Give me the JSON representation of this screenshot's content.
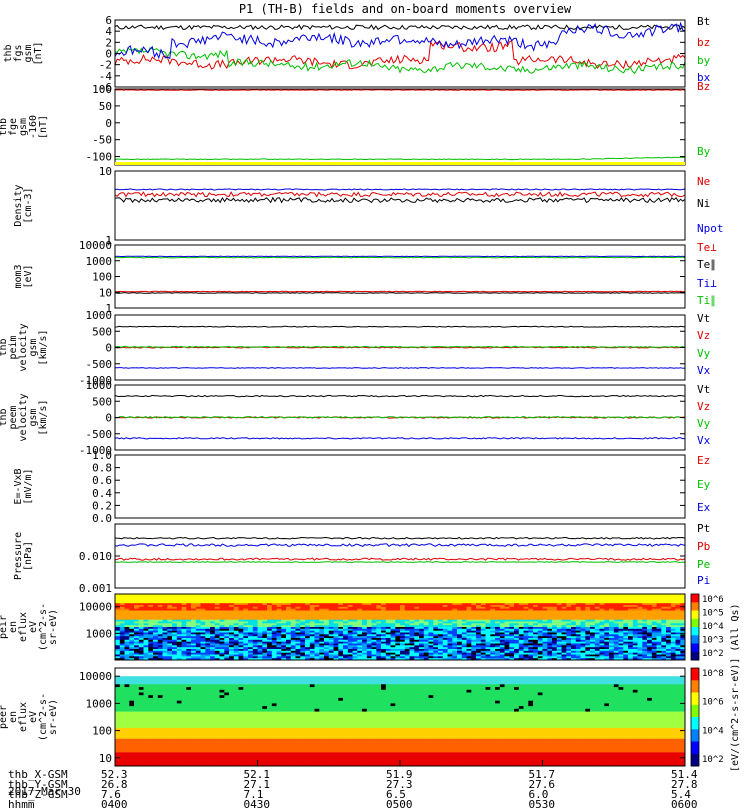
{
  "title": "P1  (TH-B) fields and on-board moments overview",
  "date_label": "2017 Mar 30",
  "colors": {
    "black": "#000000",
    "red": "#e00000",
    "green": "#00c000",
    "blue": "#0000e0",
    "yellow": "#ffff00"
  },
  "x_axis": {
    "rows": [
      {
        "label": "thb_X-GSM",
        "values": [
          "52.3",
          "52.1",
          "51.9",
          "51.7",
          "51.4"
        ]
      },
      {
        "label": "thb_Y-GSM",
        "values": [
          "26.8",
          "27.1",
          "27.3",
          "27.6",
          "27.8"
        ]
      },
      {
        "label": "thb_Z-GSM",
        "values": [
          "7.6",
          "7.1",
          "6.5",
          "6.0",
          "5.4"
        ]
      },
      {
        "label": "hhmm",
        "values": [
          "0400",
          "0430",
          "0500",
          "0530",
          "0600"
        ]
      }
    ]
  },
  "chart_data": [
    {
      "type": "line",
      "ylabel": [
        "thb",
        "fgs",
        "gsm",
        "[nT]"
      ],
      "ylim": [
        -6,
        6
      ],
      "ticks": [
        "-6",
        "-4",
        "-2",
        "0",
        "2",
        "4",
        "6"
      ],
      "tick_values": [
        -6,
        -4,
        -2,
        0,
        2,
        4,
        6
      ],
      "series": [
        {
          "name": "Bt",
          "color": "black",
          "base": 4.7,
          "noise": 0.4,
          "shape": "flat"
        },
        {
          "name": "bz",
          "color": "red",
          "base": -1.5,
          "noise": 0.8,
          "shape": "bz"
        },
        {
          "name": "by",
          "color": "green",
          "base": -2.5,
          "noise": 0.7,
          "shape": "by"
        },
        {
          "name": "bx",
          "color": "blue",
          "base": 2.5,
          "noise": 0.9,
          "shape": "bx"
        }
      ]
    },
    {
      "type": "line",
      "ylabel": [
        "thb",
        "fge",
        "gsm",
        "-160",
        "[nT]"
      ],
      "ylim": [
        -125,
        100
      ],
      "ticks": [
        "100",
        "50",
        "0",
        "-50",
        "-100"
      ],
      "tick_values": [
        100,
        50,
        0,
        -50,
        -100
      ],
      "series": [
        {
          "name": "Bz",
          "color": "red",
          "base": 97,
          "noise": 1,
          "shape": "flat"
        },
        {
          "name": "By",
          "color": "green",
          "base": -108,
          "noise": 1,
          "shape": "rise"
        }
      ]
    },
    {
      "type": "line",
      "ylabel": [
        "Density",
        "[cm-3]"
      ],
      "log": true,
      "ylim": [
        1,
        10
      ],
      "ticks": [
        "10",
        "1"
      ],
      "tick_values": [
        10,
        1
      ],
      "series": [
        {
          "name": "Ne",
          "color": "red",
          "base": 4.6,
          "noise": 0.35,
          "shape": "flat"
        },
        {
          "name": "Ni",
          "color": "black",
          "base": 3.8,
          "noise": 0.3,
          "shape": "flat"
        },
        {
          "name": "Npot",
          "color": "blue",
          "base": 5.4,
          "noise": 0.1,
          "shape": "flat"
        }
      ]
    },
    {
      "type": "line",
      "ylabel": [
        "mom3",
        "[eV]"
      ],
      "log": true,
      "ylim": [
        1,
        10000
      ],
      "ticks": [
        "10000",
        "1000",
        "100",
        "10",
        "1"
      ],
      "tick_values": [
        10000,
        1000,
        100,
        10,
        1
      ],
      "series": [
        {
          "name": "Te⊥",
          "color": "red",
          "base": 11,
          "noise": 0.5,
          "shape": "flat"
        },
        {
          "name": "Te∥",
          "color": "black",
          "base": 9,
          "noise": 0.4,
          "shape": "flat"
        },
        {
          "name": "Ti⊥",
          "color": "blue",
          "base": 1900,
          "noise": 60,
          "shape": "flat"
        },
        {
          "name": "Ti∥",
          "color": "green",
          "base": 1600,
          "noise": 80,
          "shape": "flat"
        }
      ]
    },
    {
      "type": "line",
      "ylabel": [
        "thb",
        "peim",
        "velocity",
        "gsm",
        "[km/s]"
      ],
      "ylim": [
        -1000,
        1000
      ],
      "ticks": [
        "1000",
        "500",
        "0",
        "-500",
        "-1000"
      ],
      "tick_values": [
        1000,
        500,
        0,
        -500,
        -1000
      ],
      "series": [
        {
          "name": "Vt",
          "color": "black",
          "base": 640,
          "noise": 12,
          "shape": "flat"
        },
        {
          "name": "Vz",
          "color": "red",
          "base": 0,
          "noise": 15,
          "shape": "flat"
        },
        {
          "name": "Vy",
          "color": "green",
          "base": 20,
          "noise": 15,
          "shape": "flat"
        },
        {
          "name": "Vx",
          "color": "blue",
          "base": -630,
          "noise": 12,
          "shape": "flat"
        }
      ]
    },
    {
      "type": "line",
      "ylabel": [
        "thb",
        "peem",
        "velocity",
        "gsm",
        "[km/s]"
      ],
      "ylim": [
        -1000,
        1000
      ],
      "ticks": [
        "1000",
        "500",
        "0",
        "-500",
        "-1000"
      ],
      "tick_values": [
        1000,
        500,
        0,
        -500,
        -1000
      ],
      "series": [
        {
          "name": "Vt",
          "color": "black",
          "base": 660,
          "noise": 20,
          "shape": "flat"
        },
        {
          "name": "Vz",
          "color": "red",
          "base": 0,
          "noise": 20,
          "shape": "flat"
        },
        {
          "name": "Vy",
          "color": "green",
          "base": 10,
          "noise": 20,
          "shape": "flat"
        },
        {
          "name": "Vx",
          "color": "blue",
          "base": -640,
          "noise": 20,
          "shape": "flat"
        }
      ]
    },
    {
      "type": "line",
      "ylabel": [
        "E=-VxB",
        "[mV/m]"
      ],
      "ylim": [
        0,
        1
      ],
      "ticks": [
        "1.0",
        "0.8",
        "0.6",
        "0.4",
        "0.2",
        "0.0"
      ],
      "tick_values": [
        1,
        0.8,
        0.6,
        0.4,
        0.2,
        0
      ],
      "series": [
        {
          "name": "Ez",
          "color": "red"
        },
        {
          "name": "Ey",
          "color": "green"
        },
        {
          "name": "Ex",
          "color": "blue"
        }
      ]
    },
    {
      "type": "line",
      "ylabel": [
        "Pressure",
        "[nPa]"
      ],
      "log": true,
      "ylim": [
        0.001,
        0.1
      ],
      "ticks": [
        "0.010",
        "0.001"
      ],
      "tick_values": [
        0.01,
        0.001
      ],
      "series": [
        {
          "name": "Pt",
          "color": "black",
          "base": 0.036,
          "noise": 0.002,
          "shape": "flat"
        },
        {
          "name": "Pb",
          "color": "red",
          "base": 0.008,
          "noise": 0.0006,
          "shape": "flat"
        },
        {
          "name": "Pe",
          "color": "green",
          "base": 0.0065,
          "noise": 0.0002,
          "shape": "flat"
        },
        {
          "name": "Pi",
          "color": "blue",
          "base": 0.022,
          "noise": 0.002,
          "shape": "flat"
        }
      ]
    },
    {
      "type": "heatmap",
      "ylabel": [
        "thb",
        "peir",
        "en",
        "eflux",
        "eV",
        "(cm^2-s-",
        "sr-eV)"
      ],
      "log": true,
      "ylim": [
        100,
        30000
      ],
      "ticks": [
        "10000",
        "1000"
      ],
      "tick_values": [
        10000,
        1000
      ],
      "colorbar": {
        "labels": [
          "10^6",
          "10^5",
          "10^4",
          "10^3",
          "10^2"
        ]
      }
    },
    {
      "type": "heatmap",
      "ylabel": [
        "thb",
        "peer",
        "en",
        "eflux",
        "eV",
        "(cm^2-s-",
        "sr-eV)"
      ],
      "log": true,
      "ylim": [
        5,
        20000
      ],
      "ticks": [
        "10000",
        "1000",
        "100",
        "10"
      ],
      "tick_values": [
        10000,
        1000,
        100,
        10
      ],
      "colorbar": {
        "labels": [
          "10^8",
          "10^6",
          "10^4",
          "10^2"
        ]
      }
    }
  ],
  "colorbar_unit": "[eV/(cm^2-s-sr-eV)] (All Qs)"
}
